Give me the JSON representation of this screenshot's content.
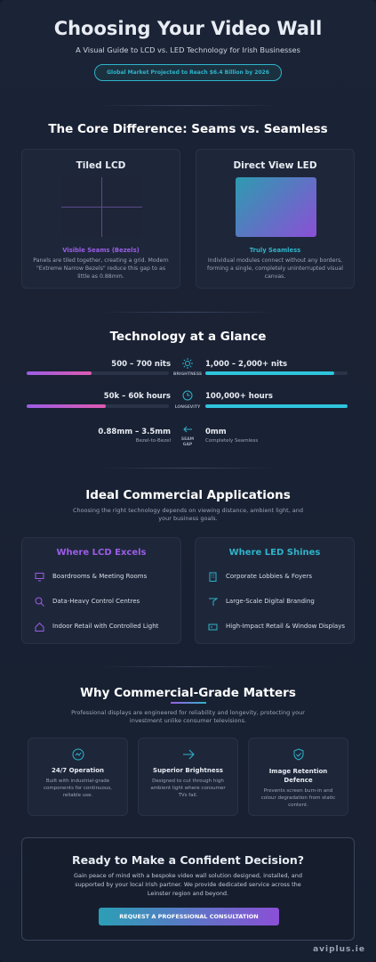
{
  "header": {
    "title": "Choosing Your Video Wall",
    "subtitle": "A Visual Guide to LCD vs. LED Technology for Irish Businesses",
    "badge": "Global Market Projected to Reach $6.4 Billion by 2026"
  },
  "core": {
    "title": "The Core Difference: Seams vs. Seamless",
    "lcd": {
      "title": "Tiled LCD",
      "label": "Visible Seams (Bezels)",
      "text": "Panels are tiled together, creating a grid. Modern \"Extreme Narrow Bezels\" reduce this gap to as little as 0.88mm."
    },
    "led": {
      "title": "Direct View LED",
      "label": "Truly Seamless",
      "text": "Individual modules connect without any borders, forming a single, completely uninterrupted visual canvas."
    }
  },
  "glance": {
    "title": "Technology at a Glance",
    "rows": [
      {
        "lcd": "500 – 700 nits",
        "metric": "BRIGHTNESS",
        "led": "1,000 – 2,000+ nits"
      },
      {
        "lcd": "50k – 60k hours",
        "metric": "LONGEVITY",
        "led": "100,000+ hours"
      },
      {
        "lcd": "0.88mm – 3.5mm",
        "lcd_note": "Bezel-to-Bezel",
        "metric": "SEAM GAP",
        "led": "0mm",
        "led_note": "Completely Seamless"
      }
    ]
  },
  "apps": {
    "title": "Ideal Commercial Applications",
    "subtitle": "Choosing the right technology depends on viewing distance, ambient light, and your business goals.",
    "lcd": {
      "title": "Where LCD Excels",
      "items": [
        "Boardrooms & Meeting Rooms",
        "Data-Heavy Control Centres",
        "Indoor Retail with Controlled Light"
      ]
    },
    "led": {
      "title": "Where LED Shines",
      "items": [
        "Corporate Lobbies & Foyers",
        "Large-Scale Digital Branding",
        "High-Impact Retail & Window Displays"
      ]
    }
  },
  "grade": {
    "title": "Why Commercial-Grade Matters",
    "subtitle": "Professional displays are engineered for reliability and longevity, protecting your investment unlike consumer televisions.",
    "features": [
      {
        "title": "24/7 Operation",
        "text": "Built with industrial-grade components for continuous, reliable use."
      },
      {
        "title": "Superior Brightness",
        "text": "Designed to cut through high ambient light where consumer TVs fail."
      },
      {
        "title": "Image Retention Defence",
        "text": "Prevents screen burn-in and colour degradation from static content."
      }
    ]
  },
  "cta": {
    "title": "Ready to Make a Confident Decision?",
    "text": "Gain peace of mind with a bespoke video wall solution designed, installed, and supported by your local Irish partner. We provide dedicated service across the Leinster region and beyond.",
    "button": "REQUEST A PROFESSIONAL CONSULTATION"
  },
  "footer": {
    "brand": "aviplus.ie"
  }
}
